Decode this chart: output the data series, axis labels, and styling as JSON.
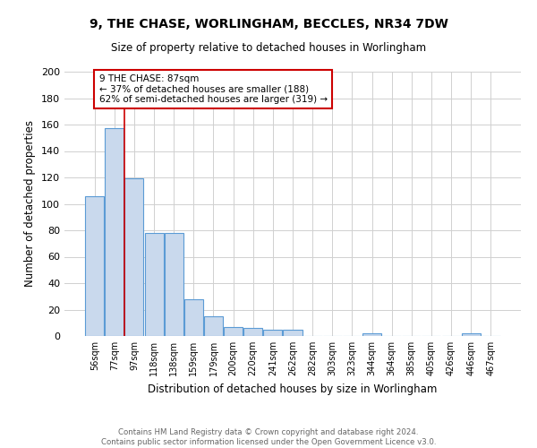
{
  "title": "9, THE CHASE, WORLINGHAM, BECCLES, NR34 7DW",
  "subtitle": "Size of property relative to detached houses in Worlingham",
  "xlabel": "Distribution of detached houses by size in Worlingham",
  "ylabel": "Number of detached properties",
  "bar_labels": [
    "56sqm",
    "77sqm",
    "97sqm",
    "118sqm",
    "138sqm",
    "159sqm",
    "179sqm",
    "200sqm",
    "220sqm",
    "241sqm",
    "262sqm",
    "282sqm",
    "303sqm",
    "323sqm",
    "344sqm",
    "364sqm",
    "385sqm",
    "405sqm",
    "426sqm",
    "446sqm",
    "467sqm"
  ],
  "bar_values": [
    106,
    157,
    119,
    78,
    78,
    28,
    15,
    7,
    6,
    5,
    5,
    0,
    0,
    0,
    2,
    0,
    0,
    0,
    0,
    2,
    0
  ],
  "bar_color": "#c9d9ed",
  "bar_edge_color": "#5b9bd5",
  "grid_color": "#d0d0d0",
  "annotation_text": "9 THE CHASE: 87sqm\n← 37% of detached houses are smaller (188)\n62% of semi-detached houses are larger (319) →",
  "annotation_box_edge": "#cc0000",
  "red_line_x": 1.5,
  "ylim": [
    0,
    200
  ],
  "yticks": [
    0,
    20,
    40,
    60,
    80,
    100,
    120,
    140,
    160,
    180,
    200
  ],
  "footer_line1": "Contains HM Land Registry data © Crown copyright and database right 2024.",
  "footer_line2": "Contains public sector information licensed under the Open Government Licence v3.0."
}
